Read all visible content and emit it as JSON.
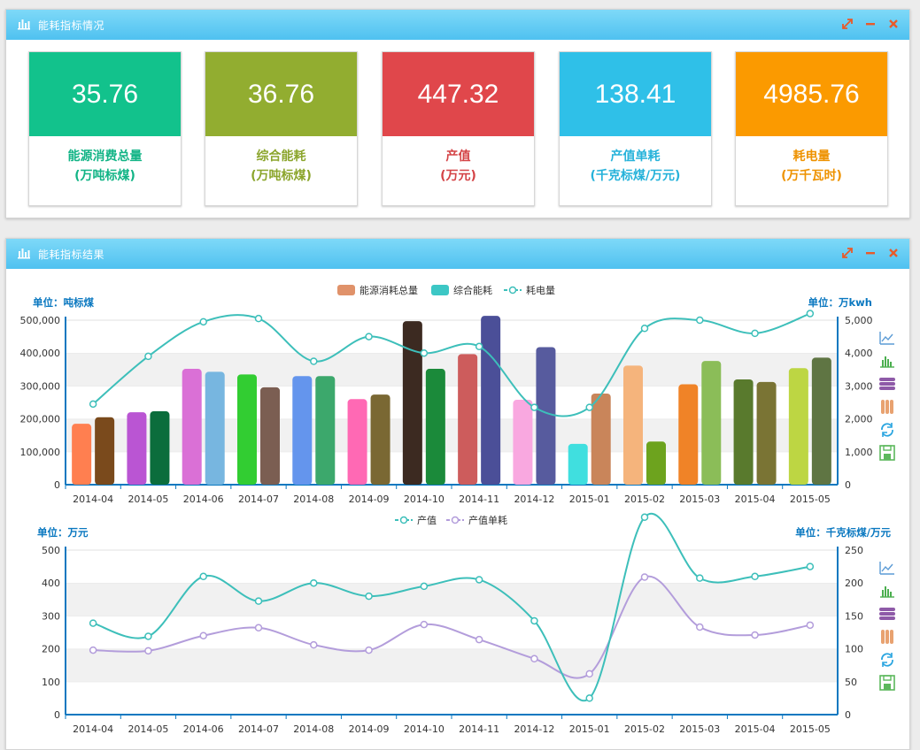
{
  "panel1": {
    "title": "能耗指标情况",
    "kpis": [
      {
        "value": "35.76",
        "label1": "能源消费总量",
        "label2": "(万吨标煤)",
        "color": "#12c28c"
      },
      {
        "value": "36.76",
        "label1": "综合能耗",
        "label2": "(万吨标煤)",
        "color": "#92ad30"
      },
      {
        "value": "447.32",
        "label1": "产值",
        "label2": "(万元)",
        "color": "#e0474b"
      },
      {
        "value": "138.41",
        "label1": "产值单耗",
        "label2": "(千克标煤/万元)",
        "color": "#2fc0e8"
      },
      {
        "value": "4985.76",
        "label1": "耗电量",
        "label2": "(万千瓦时)",
        "color": "#fb9a00"
      }
    ]
  },
  "panel2": {
    "title": "能耗指标结果"
  },
  "colors": {
    "header_gradient_top": "#7ed9f8",
    "header_gradient_bottom": "#4fc1f0",
    "axis": "#0a78c0",
    "line": "#3dbfba",
    "line2": "#b39ddb",
    "legend_bar1": "#e0926a",
    "legend_bar2": "#3cc7c5"
  },
  "toolbox_icons": [
    "line-chart-icon",
    "bar-chart-icon",
    "stack-icon",
    "tiled-icon",
    "restore-icon",
    "save-image-icon"
  ],
  "chart_data": [
    {
      "type": "bar",
      "legend": [
        "能源消耗总量",
        "综合能耗",
        "耗电量"
      ],
      "legend_position": "top-center",
      "left_unit": "单位：吨标煤",
      "right_unit": "单位：万kwh",
      "categories": [
        "2014-04",
        "2014-05",
        "2014-06",
        "2014-07",
        "2014-08",
        "2014-09",
        "2014-10",
        "2014-11",
        "2014-12",
        "2015-01",
        "2015-02",
        "2015-03",
        "2015-04",
        "2015-05"
      ],
      "y_ticks": [
        "0",
        "100,000",
        "200,000",
        "300,000",
        "400,000",
        "500,000"
      ],
      "y2_ticks": [
        "0",
        "1,000",
        "2,000",
        "3,000",
        "4,000",
        "5,000"
      ],
      "ylim": [
        0,
        500000
      ],
      "y2lim": [
        0,
        5000
      ],
      "grid": true,
      "series": [
        {
          "name": "能源消耗总量",
          "type": "bar",
          "axis": "left",
          "values": [
            185000,
            220000,
            352000,
            335000,
            330000,
            260000,
            497000,
            397000,
            258000,
            124000,
            362000,
            305000,
            320000,
            354000
          ],
          "colors": [
            "#ff7f50",
            "#ba55d3",
            "#da70d6",
            "#32cd32",
            "#6495ed",
            "#ff69b4",
            "#3c2a21",
            "#cd5c5c",
            "#f9a8e0",
            "#40dfdf",
            "#f5b47c",
            "#f08327",
            "#597a2d",
            "#bdd643"
          ]
        },
        {
          "name": "综合能耗",
          "type": "bar",
          "axis": "left",
          "values": [
            205000,
            223000,
            343000,
            296000,
            330000,
            274000,
            352000,
            513000,
            418000,
            277000,
            131000,
            376000,
            312000,
            386000
          ],
          "colors": [
            "#7a4a1c",
            "#0b6d3c",
            "#77b6e0",
            "#7b5e52",
            "#3ca86c",
            "#7a6833",
            "#1b8a3a",
            "#4b4f98",
            "#575b9e",
            "#c9855a",
            "#6da31e",
            "#8bbd58",
            "#7a7434",
            "#5f7543"
          ]
        },
        {
          "name": "耗电量",
          "type": "line",
          "axis": "right",
          "values": [
            2450,
            3900,
            4950,
            5050,
            3750,
            4500,
            4000,
            4200,
            2350,
            2350,
            4750,
            5000,
            4600,
            5200
          ]
        }
      ]
    },
    {
      "type": "line",
      "legend": [
        "产值",
        "产值单耗"
      ],
      "legend_position": "top-center",
      "left_unit": "单位：万元",
      "right_unit": "单位：千克标煤/万元",
      "categories": [
        "2014-04",
        "2014-05",
        "2014-06",
        "2014-07",
        "2014-08",
        "2014-09",
        "2014-10",
        "2014-11",
        "2014-12",
        "2015-01",
        "2015-02",
        "2015-03",
        "2015-04",
        "2015-05"
      ],
      "y_ticks": [
        "0",
        "100",
        "200",
        "300",
        "400",
        "500"
      ],
      "y2_ticks": [
        "0",
        "50",
        "100",
        "150",
        "200",
        "250"
      ],
      "ylim": [
        0,
        500
      ],
      "y2lim": [
        0,
        250
      ],
      "grid": true,
      "series": [
        {
          "name": "产值",
          "axis": "left",
          "values": [
            278,
            238,
            420,
            345,
            400,
            360,
            390,
            410,
            285,
            50,
            600,
            415,
            420,
            450
          ]
        },
        {
          "name": "产值单耗",
          "axis": "right",
          "values": [
            98,
            97,
            120,
            132,
            106,
            98,
            137,
            114,
            85,
            62,
            209,
            133,
            121,
            136
          ]
        }
      ]
    }
  ]
}
